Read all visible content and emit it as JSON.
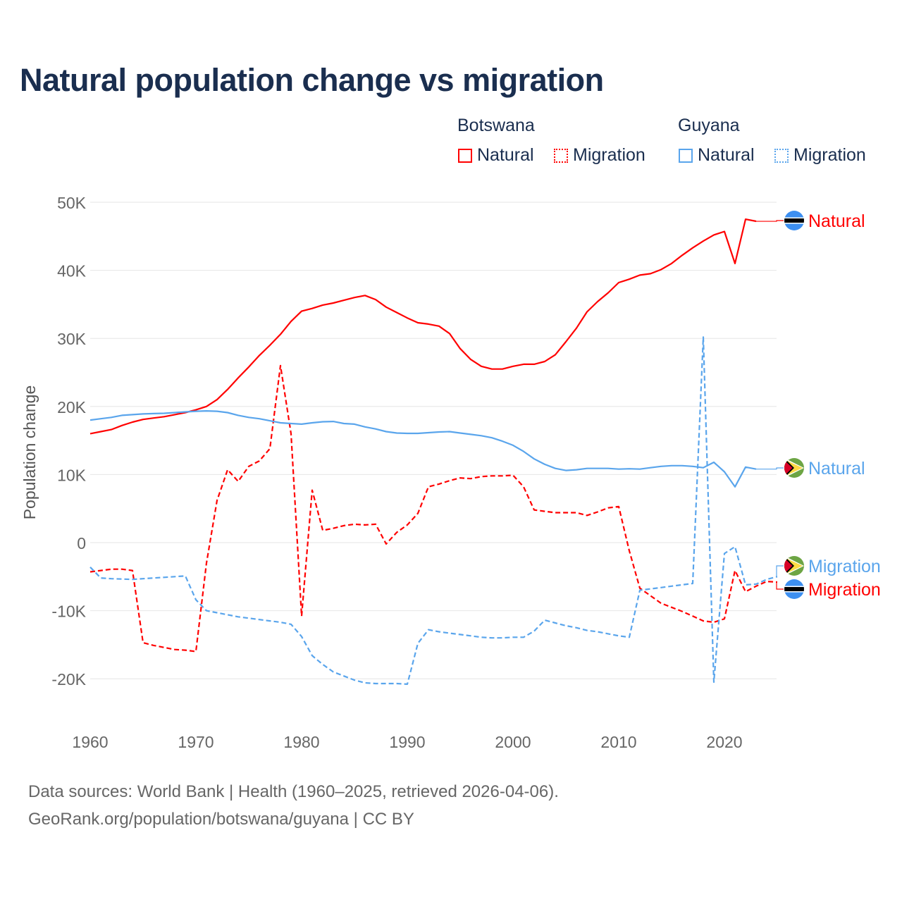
{
  "title": "Natural population change vs migration",
  "legend": {
    "groups": [
      {
        "name": "Botswana",
        "items": [
          {
            "label": "Natural",
            "style": "solid",
            "color": "#ff0000"
          },
          {
            "label": "Migration",
            "style": "dotted",
            "color": "#ff0000"
          }
        ]
      },
      {
        "name": "Guyana",
        "items": [
          {
            "label": "Natural",
            "style": "solid",
            "color": "#5aa5ec"
          },
          {
            "label": "Migration",
            "style": "dotted",
            "color": "#5aa5ec"
          }
        ]
      }
    ]
  },
  "footer": {
    "line1": "Data sources: World Bank | Health (1960–2025, retrieved 2026-04-06).",
    "line2": "GeoRank.org/population/botswana/guyana | CC BY"
  },
  "chart_data": {
    "type": "line",
    "title": "Natural population change vs migration",
    "xlabel": "",
    "ylabel": "Population change",
    "xlim": [
      1960,
      2025
    ],
    "ylim": [
      -25000,
      50000
    ],
    "x_ticks": [
      1960,
      1970,
      1980,
      1990,
      2000,
      2010,
      2020
    ],
    "y_ticks": [
      -20000,
      -10000,
      0,
      10000,
      20000,
      30000,
      40000,
      50000
    ],
    "y_tick_labels": [
      "-20K",
      "-10K",
      "0",
      "10K",
      "20K",
      "30K",
      "40K",
      "50K"
    ],
    "grid": true,
    "legend_position": "top-right",
    "series": [
      {
        "name": "Botswana Natural",
        "end_label": "Natural",
        "country": "Botswana",
        "color": "#ff0000",
        "dash": false,
        "start": 1960,
        "values": [
          16000,
          16300,
          16600,
          17200,
          17700,
          18100,
          18300,
          18500,
          18800,
          19100,
          19500,
          20000,
          21000,
          22500,
          24200,
          25800,
          27500,
          29000,
          30600,
          32500,
          34000,
          34400,
          34900,
          35200,
          35600,
          36000,
          36300,
          35700,
          34600,
          33800,
          33000,
          32300,
          32100,
          31800,
          30700,
          28500,
          26900,
          25900,
          25500,
          25500,
          25900,
          26200,
          26200,
          26600,
          27600,
          29500,
          31500,
          33900,
          35400,
          36700,
          38200,
          38700,
          39300,
          39500,
          40100,
          41000,
          42200,
          43300,
          44300,
          45200,
          45700,
          41000,
          47500,
          47200
        ]
      },
      {
        "name": "Botswana Migration",
        "end_label": "Migration",
        "country": "Botswana",
        "color": "#ff0000",
        "dash": true,
        "start": 1960,
        "values": [
          -4300,
          -4100,
          -3900,
          -3900,
          -4100,
          -14700,
          -15100,
          -15400,
          -15700,
          -15800,
          -16000,
          -3000,
          6200,
          10700,
          9000,
          11200,
          12000,
          13800,
          26000,
          16000,
          -10800,
          7700,
          1800,
          2100,
          2500,
          2700,
          2600,
          2700,
          -200,
          1500,
          2600,
          4300,
          8200,
          8600,
          9100,
          9500,
          9400,
          9700,
          9800,
          9800,
          9900,
          8200,
          4800,
          4600,
          4400,
          4400,
          4400,
          4000,
          4500,
          5100,
          5300,
          -1200,
          -6700,
          -7800,
          -8900,
          -9500,
          -10100,
          -10800,
          -11500,
          -11700,
          -11200,
          -4100,
          -7200,
          -6400,
          -5700,
          -5800
        ]
      },
      {
        "name": "Guyana Natural",
        "end_label": "Natural",
        "country": "Guyana",
        "color": "#5aa5ec",
        "dash": false,
        "start": 1960,
        "values": [
          18000,
          18200,
          18400,
          18700,
          18800,
          18900,
          18950,
          19000,
          19100,
          19200,
          19300,
          19350,
          19300,
          19100,
          18700,
          18400,
          18200,
          17900,
          17600,
          17500,
          17400,
          17600,
          17750,
          17800,
          17500,
          17400,
          17000,
          16700,
          16300,
          16100,
          16050,
          16050,
          16150,
          16250,
          16300,
          16100,
          15900,
          15700,
          15400,
          14900,
          14300,
          13400,
          12300,
          11500,
          10900,
          10600,
          10700,
          10900,
          10900,
          10900,
          10800,
          10850,
          10800,
          11000,
          11200,
          11300,
          11300,
          11200,
          11000,
          11800,
          10400,
          8200,
          11100,
          10800
        ]
      },
      {
        "name": "Guyana Migration",
        "end_label": "Migration",
        "country": "Guyana",
        "color": "#5aa5ec",
        "dash": true,
        "start": 1960,
        "values": [
          -3600,
          -5200,
          -5300,
          -5350,
          -5400,
          -5300,
          -5200,
          -5100,
          -5000,
          -4900,
          -8400,
          -10000,
          -10300,
          -10600,
          -10900,
          -11100,
          -11300,
          -11500,
          -11700,
          -12000,
          -13800,
          -16600,
          -17900,
          -19000,
          -19600,
          -20200,
          -20600,
          -20700,
          -20700,
          -20700,
          -20800,
          -14800,
          -12800,
          -13100,
          -13300,
          -13500,
          -13700,
          -13900,
          -14000,
          -14000,
          -13900,
          -13900,
          -13000,
          -11400,
          -11800,
          -12200,
          -12500,
          -12900,
          -13100,
          -13400,
          -13700,
          -13900,
          -7000,
          -6800,
          -6600,
          -6400,
          -6200,
          -6000,
          30200,
          -20500,
          -1600,
          -600,
          -6200,
          -6100,
          -5400,
          -5000
        ]
      }
    ]
  }
}
